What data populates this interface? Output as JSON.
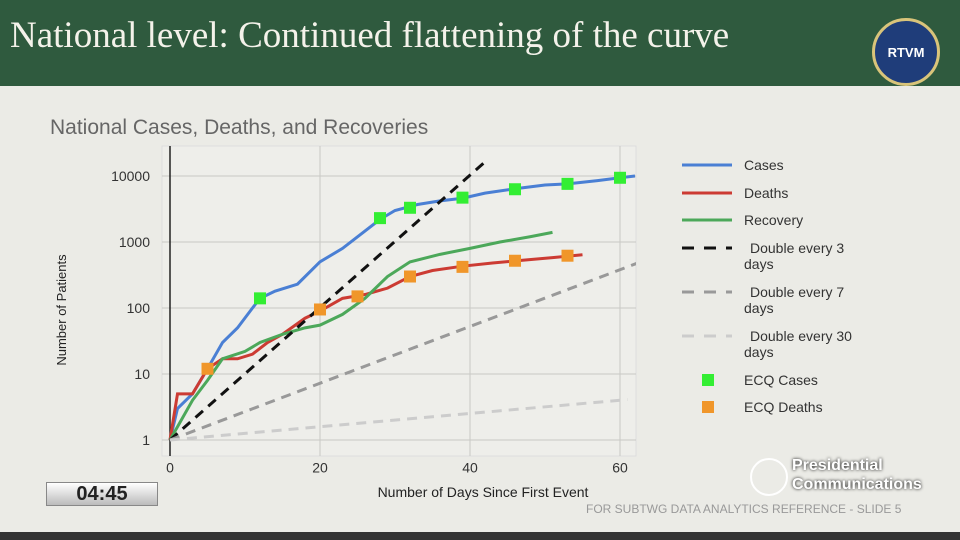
{
  "slide": {
    "title": "National level: Continued flattening of the curve",
    "logo_text": "RTVM",
    "timer": "04:45",
    "footer": "FOR SUBTWG DATA ANALYTICS REFERENCE - SLIDE 5",
    "watermark": [
      "Presidential",
      "Communications"
    ]
  },
  "chart_data": {
    "type": "line",
    "title": "National Cases, Deaths, and Recoveries",
    "xlabel": "Number of Days Since First Event",
    "ylabel": "Number of Patients",
    "xlim": [
      -1,
      63
    ],
    "ylim": [
      1,
      15000
    ],
    "yscale": "log",
    "xticks": [
      0,
      20,
      40,
      60
    ],
    "yticks": [
      1,
      10,
      100,
      1000,
      10000
    ],
    "ytick_labels": [
      "1",
      "10",
      "100",
      "1000",
      "10000"
    ],
    "grid": true,
    "legend_position": "right",
    "series": [
      {
        "name": "Cases",
        "color": "#4a7fd4",
        "style": "solid",
        "x": [
          0,
          1,
          3,
          5,
          7,
          9,
          11,
          12,
          14,
          17,
          20,
          23,
          25,
          28,
          30,
          33,
          36,
          39,
          42,
          46,
          50,
          53,
          57,
          60,
          62
        ],
        "y": [
          1,
          3,
          5,
          12,
          30,
          50,
          100,
          140,
          180,
          230,
          500,
          800,
          1200,
          2200,
          3000,
          3700,
          4200,
          4600,
          5500,
          6400,
          7300,
          7600,
          8500,
          9400,
          10000
        ]
      },
      {
        "name": "Deaths",
        "color": "#cc3b33",
        "style": "solid",
        "x": [
          0,
          1,
          3,
          5,
          7,
          9,
          11,
          13,
          15,
          18,
          20,
          23,
          26,
          29,
          32,
          35,
          39,
          43,
          47,
          51,
          55
        ],
        "y": [
          1,
          5,
          5,
          12,
          17,
          17,
          20,
          30,
          40,
          70,
          90,
          140,
          160,
          200,
          300,
          370,
          430,
          480,
          530,
          580,
          640
        ]
      },
      {
        "name": "Recovery",
        "color": "#4ca85a",
        "style": "solid",
        "x": [
          0,
          3,
          5,
          7,
          10,
          12,
          15,
          18,
          20,
          23,
          26,
          29,
          32,
          36,
          40,
          44,
          48,
          51
        ],
        "y": [
          1,
          4,
          8,
          17,
          22,
          30,
          40,
          50,
          55,
          80,
          140,
          300,
          500,
          650,
          800,
          1000,
          1200,
          1400
        ]
      },
      {
        "name": "Double every 3 days",
        "color": "#111111",
        "style": "dash",
        "x": [
          0,
          42
        ],
        "y": [
          1,
          16384
        ]
      },
      {
        "name": "Double every 7 days",
        "color": "#999999",
        "style": "dash",
        "x": [
          0,
          63
        ],
        "y": [
          1,
          512
        ]
      },
      {
        "name": "Double every 30 days",
        "color": "#cccccc",
        "style": "dash",
        "x": [
          0,
          61
        ],
        "y": [
          1,
          4.1
        ]
      },
      {
        "name": "ECQ Cases",
        "color": "#33ee33",
        "style": "square",
        "x": [
          12,
          28,
          32,
          39,
          46,
          53,
          60
        ],
        "y": [
          140,
          2300,
          3300,
          4700,
          6300,
          7600,
          9400
        ]
      },
      {
        "name": "ECQ Deaths",
        "color": "#f0962a",
        "style": "square",
        "x": [
          5,
          20,
          25,
          32,
          39,
          46,
          53
        ],
        "y": [
          12,
          95,
          150,
          300,
          420,
          520,
          620
        ]
      }
    ],
    "legend_labels": [
      [
        "Cases"
      ],
      [
        "Deaths"
      ],
      [
        "Recovery"
      ],
      [
        "Double every  3",
        "days"
      ],
      [
        "Double every  7",
        "days"
      ],
      [
        "Double every 30",
        "days"
      ],
      [
        "ECQ Cases"
      ],
      [
        "ECQ Deaths"
      ]
    ]
  }
}
